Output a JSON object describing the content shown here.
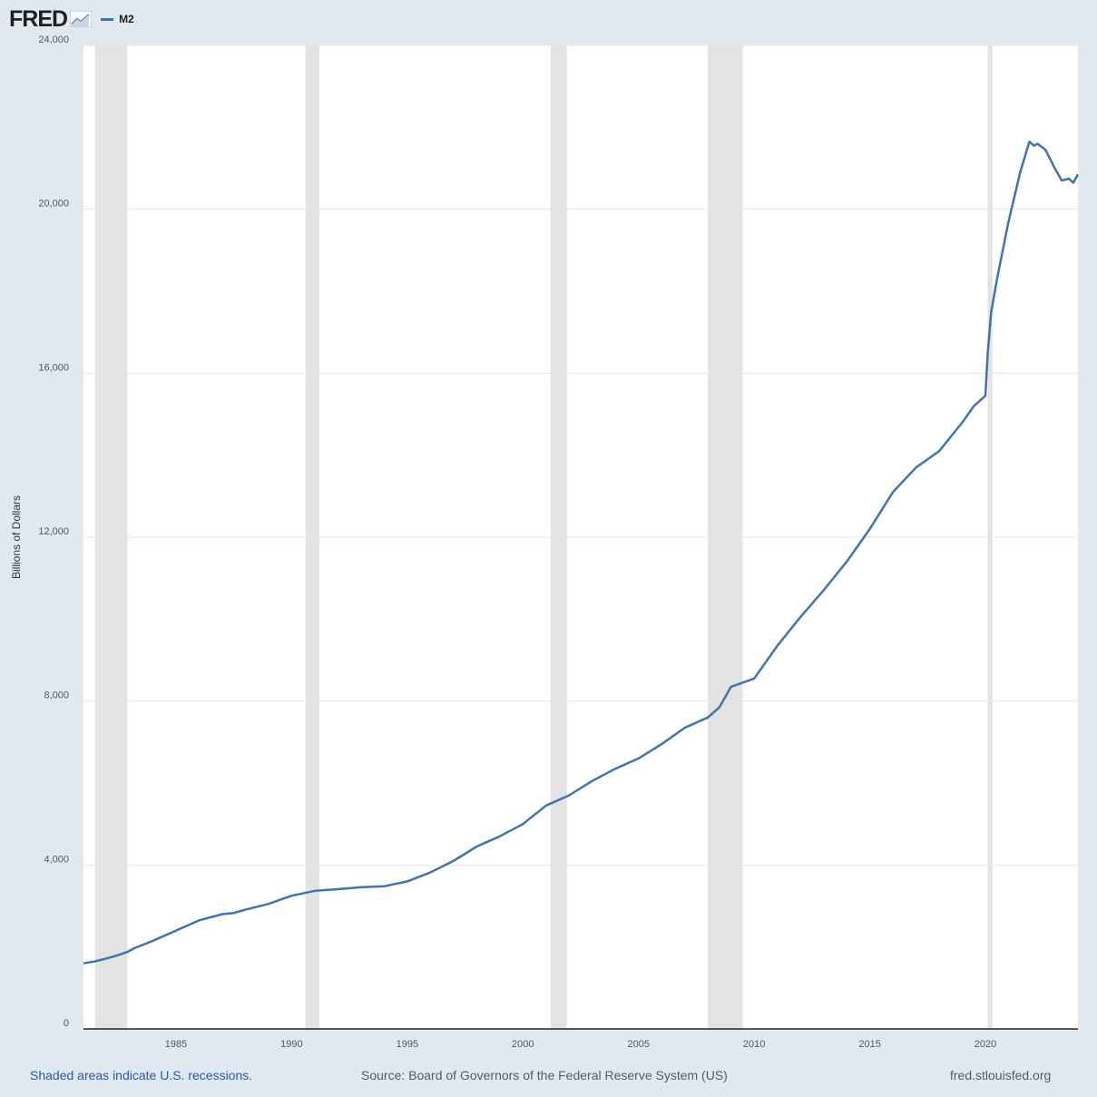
{
  "header": {
    "logo": "FRED",
    "legend_label": "M2"
  },
  "footer": {
    "recession_note": "Shaded areas indicate U.S. recessions.",
    "source": "Source: Board of Governors of the Federal Reserve System (US)",
    "site": "fred.stlouisfed.org"
  },
  "colors": {
    "line": "#4572a7",
    "recession": "#e3e3e3",
    "background": "#e1e9f0",
    "plot": "#ffffff"
  },
  "chart_data": {
    "type": "line",
    "ylabel": "Billions of Dollars",
    "xlabel": "",
    "title": "",
    "ylim": [
      0,
      24000
    ],
    "xlim": [
      1981.0,
      2024.0
    ],
    "y_ticks": [
      0,
      4000,
      8000,
      12000,
      16000,
      20000,
      24000
    ],
    "y_tick_labels": [
      "0",
      "4,000",
      "8,000",
      "12,000",
      "16,000",
      "20,000",
      "24,000"
    ],
    "x_ticks": [
      1985,
      1990,
      1995,
      2000,
      2005,
      2010,
      2015,
      2020
    ],
    "x_tick_labels": [
      "1985",
      "1990",
      "1995",
      "2000",
      "2005",
      "2010",
      "2015",
      "2020"
    ],
    "grid": "horizontal",
    "legend": "top-left",
    "recessions": [
      [
        1981.5,
        1982.9
      ],
      [
        1990.6,
        1991.2
      ],
      [
        2001.2,
        2001.9
      ],
      [
        2008.0,
        2009.5
      ],
      [
        2020.1,
        2020.3
      ]
    ],
    "series": [
      {
        "name": "M2",
        "x": [
          1981.0,
          1981.5,
          1982.0,
          1982.5,
          1982.9,
          1983.2,
          1984.0,
          1985.0,
          1986.0,
          1987.0,
          1987.5,
          1988.0,
          1989.0,
          1990.0,
          1991.0,
          1992.0,
          1993.0,
          1994.0,
          1995.0,
          1996.0,
          1997.0,
          1998.0,
          1999.0,
          2000.0,
          2001.0,
          2002.0,
          2003.0,
          2004.0,
          2005.0,
          2006.0,
          2007.0,
          2008.0,
          2008.5,
          2009.0,
          2009.5,
          2010.0,
          2011.0,
          2012.0,
          2013.0,
          2014.0,
          2015.0,
          2016.0,
          2017.0,
          2018.0,
          2019.0,
          2019.5,
          2020.0,
          2020.1,
          2020.25,
          2020.5,
          2021.0,
          2021.5,
          2021.9,
          2022.1,
          2022.25,
          2022.6,
          2023.0,
          2023.3,
          2023.6,
          2023.8,
          2024.0
        ],
        "values": [
          1600,
          1650,
          1720,
          1800,
          1880,
          1970,
          2150,
          2400,
          2650,
          2800,
          2830,
          2910,
          3050,
          3250,
          3370,
          3410,
          3460,
          3480,
          3600,
          3820,
          4100,
          4450,
          4700,
          5000,
          5450,
          5700,
          6050,
          6350,
          6600,
          6950,
          7350,
          7600,
          7850,
          8350,
          8450,
          8550,
          9350,
          10050,
          10700,
          11400,
          12200,
          13100,
          13700,
          14100,
          14800,
          15200,
          15450,
          16500,
          17500,
          18300,
          19700,
          20900,
          21650,
          21550,
          21600,
          21450,
          21000,
          20700,
          20750,
          20650,
          20850
        ]
      }
    ]
  }
}
